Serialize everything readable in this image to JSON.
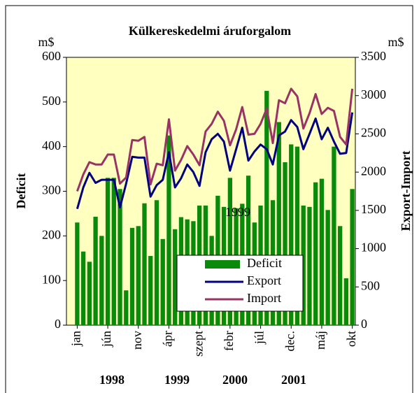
{
  "chart_data": {
    "type": "bar-line",
    "title": "Külkereskedelmi áruforgalom",
    "y_label": "Deficit",
    "y2_label": "Export-Import",
    "y_unit": "m$",
    "y2_unit": "m$",
    "categories": [
      "jan",
      null,
      null,
      null,
      null,
      "jún",
      null,
      null,
      null,
      null,
      "nov",
      null,
      null,
      null,
      null,
      "ápr",
      null,
      null,
      null,
      null,
      "szept",
      null,
      null,
      null,
      null,
      "febr",
      null,
      null,
      null,
      null,
      "júl",
      null,
      null,
      null,
      null,
      "dec.",
      null,
      null,
      null,
      null,
      "máj",
      null,
      null,
      null,
      null,
      "okt"
    ],
    "annotations": [
      "1998",
      "1999",
      "2000",
      "2001",
      "1999"
    ],
    "ylim": [
      0,
      600
    ],
    "yticks": [
      0,
      100,
      200,
      300,
      400,
      500,
      600
    ],
    "y2lim": [
      0,
      3500
    ],
    "y2ticks": [
      0,
      500,
      1000,
      1500,
      2000,
      2500,
      3000,
      3500
    ],
    "legend": "lower right",
    "series": [
      {
        "name": "Deficit",
        "kind": "bar",
        "color": "#0a8a0a",
        "values": [
          230,
          165,
          142,
          243,
          200,
          330,
          330,
          305,
          78,
          218,
          222,
          273,
          155,
          280,
          193,
          425,
          215,
          242,
          237,
          233,
          268,
          268,
          200,
          290,
          265,
          330,
          262,
          272,
          335,
          230,
          268,
          525,
          280,
          455,
          365,
          405,
          400,
          268,
          265,
          320,
          328,
          258,
          400,
          222,
          105,
          305
        ]
      },
      {
        "name": "Export",
        "kind": "line",
        "axis": "y2",
        "color": "#000080",
        "values": [
          1520,
          1800,
          1990,
          1860,
          1900,
          1900,
          1900,
          1540,
          1850,
          2200,
          2190,
          2190,
          1680,
          1830,
          1900,
          2260,
          1800,
          1920,
          2100,
          2000,
          1820,
          2260,
          2430,
          2500,
          2400,
          2020,
          2300,
          2580,
          2150,
          2270,
          2360,
          2300,
          2100,
          2480,
          2530,
          2680,
          2590,
          2300,
          2500,
          2700,
          2430,
          2580,
          2400,
          2240,
          2250,
          2780
        ]
      },
      {
        "name": "Import",
        "kind": "line",
        "axis": "y2",
        "color": "#993366",
        "values": [
          1750,
          1970,
          2130,
          2100,
          2100,
          2230,
          2230,
          1850,
          1930,
          2420,
          2410,
          2460,
          1840,
          2110,
          2090,
          2690,
          2020,
          2160,
          2340,
          2230,
          2090,
          2530,
          2630,
          2790,
          2670,
          2350,
          2560,
          2850,
          2490,
          2500,
          2630,
          2830,
          2380,
          2940,
          2900,
          3090,
          2990,
          2570,
          2770,
          3020,
          2760,
          2840,
          2800,
          2460,
          2360,
          3090
        ]
      }
    ]
  }
}
